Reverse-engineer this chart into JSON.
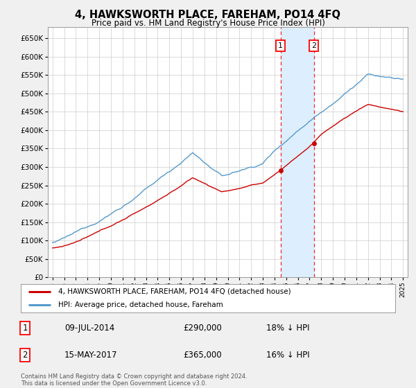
{
  "title": "4, HAWKSWORTH PLACE, FAREHAM, PO14 4FQ",
  "subtitle": "Price paid vs. HM Land Registry's House Price Index (HPI)",
  "ytick_values": [
    0,
    50000,
    100000,
    150000,
    200000,
    250000,
    300000,
    350000,
    400000,
    450000,
    500000,
    550000,
    600000,
    650000
  ],
  "ylim": [
    0,
    680000
  ],
  "transaction1": {
    "date": "09-JUL-2014",
    "price": 290000,
    "label": "1",
    "pct": "18% ↓ HPI"
  },
  "transaction2": {
    "date": "15-MAY-2017",
    "price": 365000,
    "label": "2",
    "pct": "16% ↓ HPI"
  },
  "t1_year": 2014.52,
  "t2_year": 2017.37,
  "line1_color": "#cc0000",
  "line2_color": "#5599cc",
  "shade_color": "#ddeeff",
  "legend1_label": "4, HAWKSWORTH PLACE, FAREHAM, PO14 4FQ (detached house)",
  "legend2_label": "HPI: Average price, detached house, Fareham",
  "footnote": "Contains HM Land Registry data © Crown copyright and database right 2024.\nThis data is licensed under the Open Government Licence v3.0.",
  "bg_color": "#f0f0f0",
  "plot_bg": "#ffffff",
  "grid_color": "#cccccc"
}
